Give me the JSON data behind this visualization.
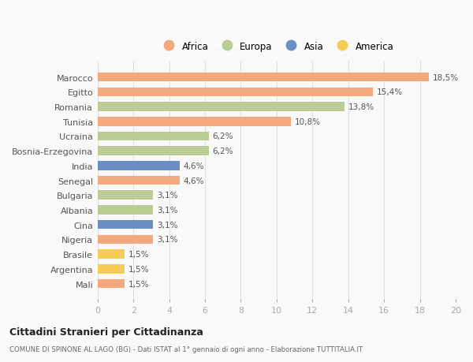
{
  "countries": [
    "Marocco",
    "Egitto",
    "Romania",
    "Tunisia",
    "Ucraina",
    "Bosnia-Erzegovina",
    "India",
    "Senegal",
    "Bulgaria",
    "Albania",
    "Cina",
    "Nigeria",
    "Brasile",
    "Argentina",
    "Mali"
  ],
  "values": [
    18.5,
    15.4,
    13.8,
    10.8,
    6.2,
    6.2,
    4.6,
    4.6,
    3.1,
    3.1,
    3.1,
    3.1,
    1.5,
    1.5,
    1.5
  ],
  "labels": [
    "18,5%",
    "15,4%",
    "13,8%",
    "10,8%",
    "6,2%",
    "6,2%",
    "4,6%",
    "4,6%",
    "3,1%",
    "3,1%",
    "3,1%",
    "3,1%",
    "1,5%",
    "1,5%",
    "1,5%"
  ],
  "continents": [
    "Africa",
    "Africa",
    "Europa",
    "Africa",
    "Europa",
    "Europa",
    "Asia",
    "Africa",
    "Europa",
    "Europa",
    "Asia",
    "Africa",
    "America",
    "America",
    "Africa"
  ],
  "colors": {
    "Africa": "#F2A97E",
    "Europa": "#BBCC94",
    "Asia": "#6B8FC2",
    "America": "#F5CC55"
  },
  "legend_order": [
    "Africa",
    "Europa",
    "Asia",
    "America"
  ],
  "title": "Cittadini Stranieri per Cittadinanza",
  "subtitle": "COMUNE DI SPINONE AL LAGO (BG) - Dati ISTAT al 1° gennaio di ogni anno - Elaborazione TUTTITALIA.IT",
  "xlim": [
    0,
    20
  ],
  "xticks": [
    0,
    2,
    4,
    6,
    8,
    10,
    12,
    14,
    16,
    18,
    20
  ],
  "bg_color": "#f9f9f9",
  "grid_color": "#e0e0e0"
}
